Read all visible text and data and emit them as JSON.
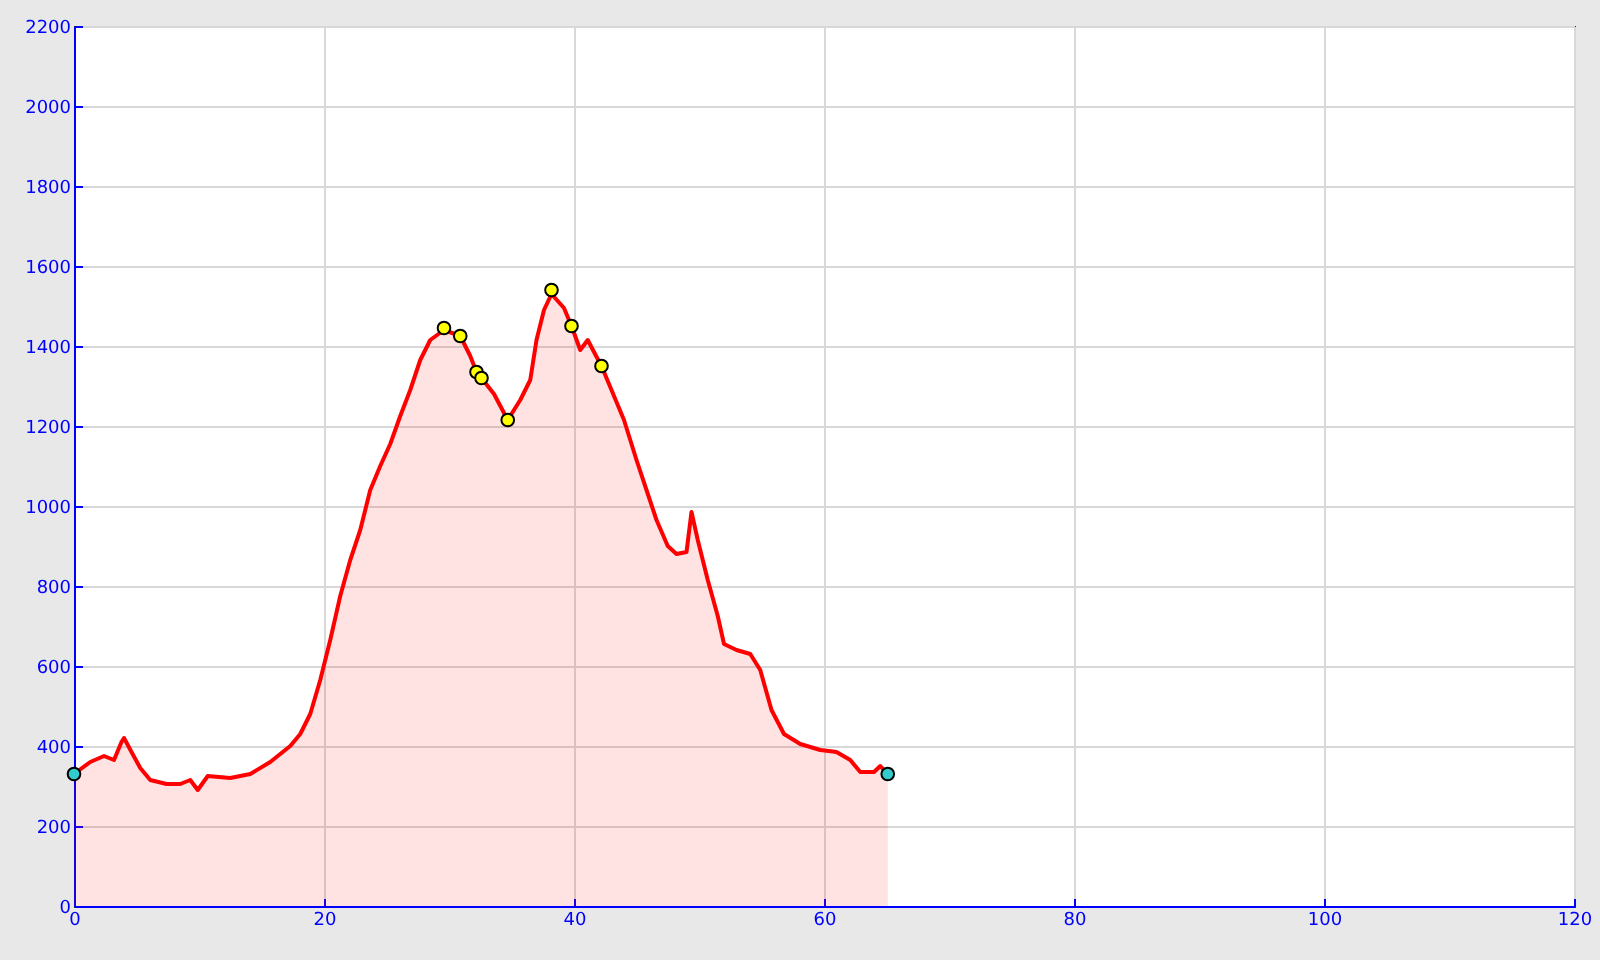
{
  "chart_data": {
    "type": "area",
    "xlim": [
      0,
      120
    ],
    "xticks": [
      0,
      20,
      40,
      60,
      80,
      100,
      120
    ],
    "ylim": [
      0,
      2200
    ],
    "yticks": [
      0,
      200,
      400,
      600,
      800,
      1000,
      1200,
      1400,
      1600,
      1800,
      2000,
      2200
    ],
    "grid": true,
    "series": [
      {
        "color": "#ff0000",
        "x": [
          0,
          1.3,
          2.4,
          3.2,
          3.8,
          4.0,
          4.6,
          5.3,
          6.1,
          7.4,
          8.5,
          9.3,
          9.9,
          10.7,
          12.5,
          14.1,
          15.7,
          17.3,
          18.1,
          18.9,
          19.7,
          20.5,
          21.3,
          22.1,
          22.9,
          23.7,
          24.5,
          25.3,
          26.1,
          26.9,
          27.7,
          28.5,
          29.6,
          30.9,
          31.7,
          32.2,
          32.6,
          33.6,
          34.7,
          35.7,
          36.5,
          37.0,
          37.6,
          38.2,
          39.2,
          39.8,
          40.5,
          41.1,
          41.6,
          42.2,
          43.0,
          44.0,
          45.0,
          45.8,
          46.6,
          47.5,
          48.2,
          49.0,
          49.4,
          49.9,
          50.7,
          51.5,
          52.0,
          53.0,
          54.1,
          54.9,
          55.8,
          56.8,
          58.1,
          59.7,
          61.0,
          62.1,
          62.9,
          64.0,
          64.5,
          65.1
        ],
        "values": [
          330,
          360,
          375,
          365,
          410,
          420,
          385,
          345,
          315,
          305,
          305,
          315,
          290,
          325,
          320,
          330,
          360,
          400,
          430,
          480,
          565,
          665,
          775,
          865,
          940,
          1040,
          1100,
          1155,
          1225,
          1290,
          1365,
          1415,
          1440,
          1425,
          1375,
          1335,
          1320,
          1280,
          1215,
          1265,
          1315,
          1415,
          1490,
          1530,
          1495,
          1450,
          1390,
          1415,
          1385,
          1350,
          1290,
          1215,
          1115,
          1040,
          965,
          900,
          880,
          885,
          985,
          915,
          815,
          725,
          655,
          640,
          630,
          590,
          490,
          430,
          405,
          390,
          385,
          365,
          335,
          335,
          350,
          330
        ]
      },
      {
        "type": "scatter",
        "color": "#ffff00",
        "marker": "circle",
        "x": [
          29.6,
          30.9,
          32.2,
          32.6,
          34.7,
          38.2,
          39.8,
          42.2
        ],
        "values": [
          1445,
          1425,
          1335,
          1320,
          1215,
          1540,
          1450,
          1350
        ]
      },
      {
        "type": "scatter",
        "color": "#33cccc",
        "marker": "circle",
        "x": [
          0,
          65.1
        ],
        "values": [
          330,
          330
        ]
      }
    ]
  }
}
